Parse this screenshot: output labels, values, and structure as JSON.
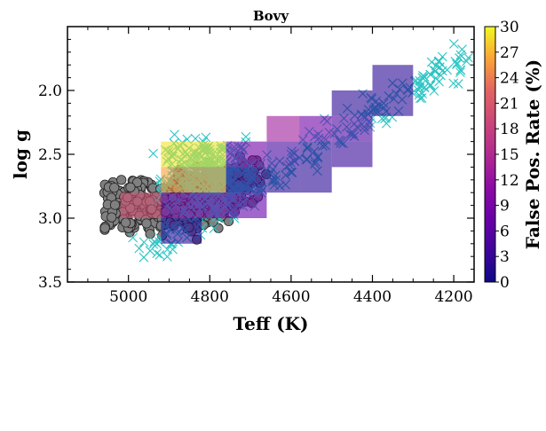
{
  "chart_data": {
    "type": "scatter",
    "title": "Bovy",
    "xlabel": "Teff (K)",
    "ylabel": "log g",
    "xlim": [
      5150,
      4150
    ],
    "ylim": [
      3.5,
      1.5
    ],
    "x_ticks": [
      5000,
      4800,
      4600,
      4400,
      4200
    ],
    "y_ticks": [
      2.0,
      2.5,
      3.0,
      3.5
    ],
    "x_tick_labels": [
      "5000",
      "4800",
      "4600",
      "4400",
      "4200"
    ],
    "y_tick_labels": [
      "2.0",
      "2.5",
      "3.0",
      "3.5"
    ],
    "colorbar": {
      "label": "False Pos. Rate (%)",
      "range": [
        0,
        30
      ],
      "ticks": [
        0,
        3,
        6,
        9,
        12,
        15,
        18,
        21,
        24,
        27,
        30
      ],
      "tick_labels": [
        "0",
        "3",
        "6",
        "9",
        "12",
        "15",
        "18",
        "21",
        "24",
        "27",
        "30"
      ],
      "colormap": "plasma"
    },
    "heatmap_cells": [
      {
        "teff": [
          4400,
          4300
        ],
        "logg": [
          1.8,
          2.2
        ],
        "rate": 2
      },
      {
        "teff": [
          4500,
          4400
        ],
        "logg": [
          2.0,
          2.2
        ],
        "rate": 2
      },
      {
        "teff": [
          4500,
          4400
        ],
        "logg": [
          2.2,
          2.4
        ],
        "rate": 5
      },
      {
        "teff": [
          4500,
          4400
        ],
        "logg": [
          2.4,
          2.6
        ],
        "rate": 3
      },
      {
        "teff": [
          4580,
          4500
        ],
        "logg": [
          2.2,
          2.4
        ],
        "rate": 8
      },
      {
        "teff": [
          4580,
          4500
        ],
        "logg": [
          2.4,
          2.8
        ],
        "rate": 2
      },
      {
        "teff": [
          4660,
          4580
        ],
        "logg": [
          2.2,
          2.4
        ],
        "rate": 13
      },
      {
        "teff": [
          4660,
          4580
        ],
        "logg": [
          2.4,
          2.6
        ],
        "rate": 4
      },
      {
        "teff": [
          4660,
          4580
        ],
        "logg": [
          2.6,
          2.8
        ],
        "rate": 2
      },
      {
        "teff": [
          4760,
          4660
        ],
        "logg": [
          2.4,
          2.6
        ],
        "rate": 8
      },
      {
        "teff": [
          4760,
          4660
        ],
        "logg": [
          2.6,
          2.8
        ],
        "rate": 3
      },
      {
        "teff": [
          4760,
          4660
        ],
        "logg": [
          2.8,
          3.0
        ],
        "rate": 7
      },
      {
        "teff": [
          4920,
          4760
        ],
        "logg": [
          2.4,
          2.6
        ],
        "rate": 29
      },
      {
        "teff": [
          4920,
          4760
        ],
        "logg": [
          2.6,
          2.8
        ],
        "rate": 26
      },
      {
        "teff": [
          4920,
          4760
        ],
        "logg": [
          2.8,
          3.0
        ],
        "rate": 9
      },
      {
        "teff": [
          4920,
          4820
        ],
        "logg": [
          3.0,
          3.2
        ],
        "rate": 2
      },
      {
        "teff": [
          5020,
          4920
        ],
        "logg": [
          2.8,
          3.0
        ],
        "rate": 20
      }
    ],
    "series": [
      {
        "marker": "circle",
        "color": "#808080",
        "cluster": {
          "teff_range": [
            5110,
            4560
          ],
          "logg_range": [
            2.3,
            3.35
          ]
        }
      },
      {
        "marker": "x",
        "color": "#2ec4c4",
        "cluster": {
          "teff_range": [
            5080,
            4160
          ],
          "logg_range": [
            1.7,
            3.4
          ]
        }
      }
    ]
  }
}
